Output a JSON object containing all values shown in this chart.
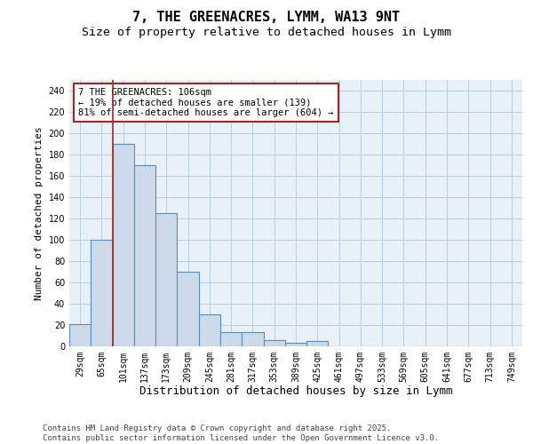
{
  "title_line1": "7, THE GREENACRES, LYMM, WA13 9NT",
  "title_line2": "Size of property relative to detached houses in Lymm",
  "xlabel": "Distribution of detached houses by size in Lymm",
  "ylabel": "Number of detached properties",
  "bar_labels": [
    "29sqm",
    "65sqm",
    "101sqm",
    "137sqm",
    "173sqm",
    "209sqm",
    "245sqm",
    "281sqm",
    "317sqm",
    "353sqm",
    "389sqm",
    "425sqm",
    "461sqm",
    "497sqm",
    "533sqm",
    "569sqm",
    "605sqm",
    "641sqm",
    "677sqm",
    "713sqm",
    "749sqm"
  ],
  "bar_heights": [
    21,
    100,
    190,
    170,
    125,
    70,
    30,
    13,
    13,
    6,
    3,
    5,
    0,
    0,
    0,
    0,
    0,
    0,
    0,
    0,
    0
  ],
  "bar_color": "#ccdaea",
  "bar_edge_color": "#5b8db8",
  "bar_edge_width": 0.8,
  "grid_color": "#b8cfe0",
  "background_color": "#e8f0f8",
  "vline_x_index": 2,
  "vline_color": "#aa2222",
  "annotation_text": "7 THE GREENACRES: 106sqm\n← 19% of detached houses are smaller (139)\n81% of semi-detached houses are larger (604) →",
  "annotation_box_color": "white",
  "annotation_box_edge_color": "#aa2222",
  "ylim": [
    0,
    250
  ],
  "yticks": [
    0,
    20,
    40,
    60,
    80,
    100,
    120,
    140,
    160,
    180,
    200,
    220,
    240
  ],
  "footer_text": "Contains HM Land Registry data © Crown copyright and database right 2025.\nContains public sector information licensed under the Open Government Licence v3.0.",
  "title_fontsize": 11,
  "subtitle_fontsize": 9.5,
  "xlabel_fontsize": 9,
  "ylabel_fontsize": 8,
  "tick_fontsize": 7,
  "annotation_fontsize": 7.5,
  "footer_fontsize": 6.5
}
